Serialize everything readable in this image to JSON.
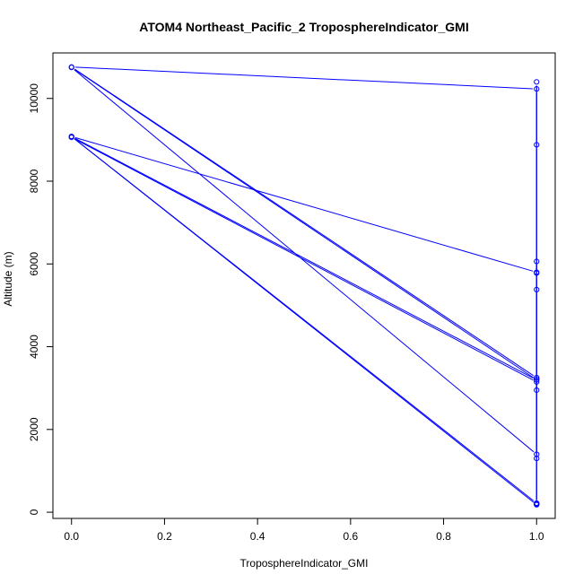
{
  "chart_data": {
    "type": "line",
    "title": "ATOM4 Northeast_Pacific_2 TroposphereIndicator_GMI",
    "xlabel": "TroposphereIndicator_GMI",
    "ylabel": "Altitude (m)",
    "xlim": [
      -0.04,
      1.04
    ],
    "ylim": [
      -150,
      11100
    ],
    "x_ticks": [
      0.0,
      0.2,
      0.4,
      0.6,
      0.8,
      1.0
    ],
    "x_tick_labels": [
      "0.0",
      "0.2",
      "0.4",
      "0.6",
      "0.8",
      "1.0"
    ],
    "y_ticks": [
      0,
      2000,
      4000,
      6000,
      8000,
      10000
    ],
    "y_tick_labels": [
      "0",
      "2000",
      "4000",
      "6000",
      "8000",
      "10000"
    ],
    "grid": false,
    "color": "#0000ff",
    "series": [
      {
        "x": [
          0,
          1,
          1,
          1,
          1,
          1,
          1,
          0,
          1,
          1,
          1,
          1,
          1,
          1,
          0,
          1,
          1,
          1,
          1,
          0,
          1,
          1,
          1,
          0,
          1,
          1
        ],
        "y": [
          9060,
          3150,
          3250,
          1300,
          200,
          200,
          220,
          9080,
          3200,
          2950,
          5380,
          5780,
          6060,
          5800,
          9080,
          180,
          200,
          8880,
          10230,
          10760,
          3250,
          10400,
          1400,
          10750,
          3200,
          200
        ]
      }
    ]
  }
}
